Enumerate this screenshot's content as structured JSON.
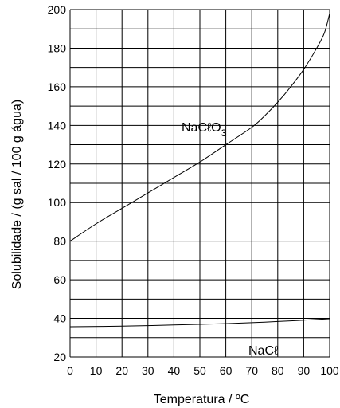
{
  "chart_data": {
    "type": "line",
    "xlabel": "Temperatura / ºC",
    "ylabel": "Solubilidade / (g sal / 100 g água)",
    "xlim": [
      0,
      100
    ],
    "ylim": [
      20,
      200
    ],
    "x_ticks": [
      0,
      10,
      20,
      30,
      40,
      50,
      60,
      70,
      80,
      90,
      100
    ],
    "y_ticks": [
      20,
      40,
      60,
      80,
      100,
      120,
      140,
      160,
      180,
      200
    ],
    "grid": true,
    "series": [
      {
        "name": "NaCℓO",
        "name_subscript": "3",
        "x": [
          0,
          10,
          20,
          30,
          40,
          50,
          60,
          70,
          75,
          80,
          85,
          90,
          95,
          98,
          100
        ],
        "y": [
          80,
          89,
          97,
          105,
          113,
          121,
          130,
          139,
          145,
          152,
          160,
          169,
          180,
          188,
          198
        ]
      },
      {
        "name": "NaCℓ",
        "x": [
          0,
          20,
          40,
          60,
          80,
          100
        ],
        "y": [
          35.7,
          36.0,
          36.6,
          37.3,
          38.4,
          39.8
        ]
      }
    ]
  }
}
